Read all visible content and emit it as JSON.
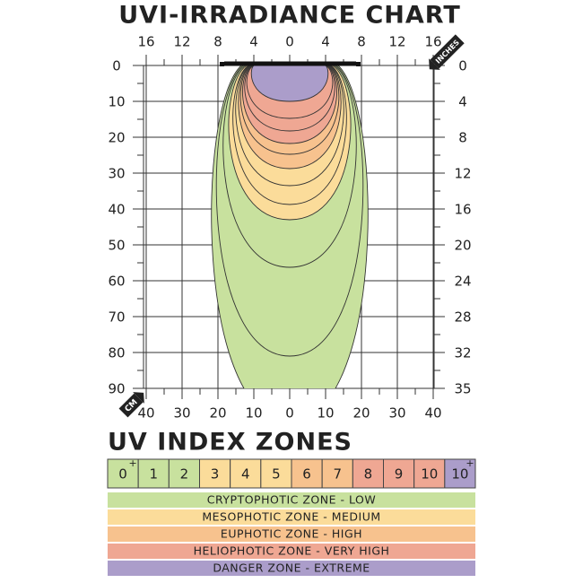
{
  "title": "UVI-IRRADIANCE CHART",
  "axes": {
    "top": {
      "unit": "INCHES",
      "labels": [
        16,
        12,
        8,
        4,
        0,
        4,
        8,
        12,
        16
      ]
    },
    "right": {
      "labels": [
        0,
        4,
        8,
        12,
        16,
        20,
        24,
        28,
        32,
        35
      ]
    },
    "left": {
      "labels": [
        0,
        10,
        20,
        30,
        40,
        50,
        60,
        70,
        80,
        90
      ]
    },
    "bottom": {
      "unit": "CM",
      "labels": [
        40,
        30,
        20,
        10,
        0,
        10,
        20,
        30,
        40
      ]
    }
  },
  "zones_heading": "UV INDEX ZONES",
  "index_boxes": [
    {
      "label": "0",
      "sup": "+"
    },
    {
      "label": "1"
    },
    {
      "label": "2"
    },
    {
      "label": "3"
    },
    {
      "label": "4"
    },
    {
      "label": "5"
    },
    {
      "label": "6"
    },
    {
      "label": "7"
    },
    {
      "label": "8"
    },
    {
      "label": "9"
    },
    {
      "label": "10"
    },
    {
      "label": "10",
      "sup": "+"
    }
  ],
  "zones": [
    "CRYPTOPHOTIC ZONE - LOW",
    "MESOPHOTIC ZONE - MEDIUM",
    "EUPHOTIC ZONE - HIGH",
    "HELIOPHOTIC ZONE - VERY HIGH",
    "DANGER ZONE - EXTREME"
  ]
}
